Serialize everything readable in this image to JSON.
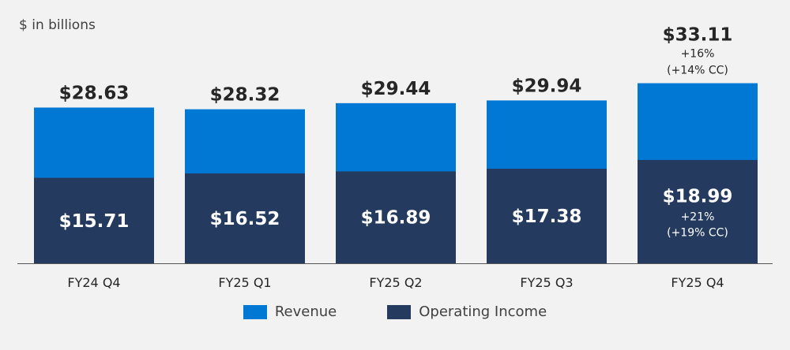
{
  "unit_note": "$ in billions",
  "colors": {
    "revenue": "#0078d4",
    "operating_income": "#243a5e",
    "baseline": "#555555"
  },
  "chart_data": {
    "type": "bar",
    "stacked": "overlay",
    "title": "",
    "xlabel": "",
    "ylabel": "",
    "ylim": [
      0,
      35
    ],
    "grid": false,
    "legend_position": "bottom-center",
    "categories": [
      "FY24 Q4",
      "FY25 Q1",
      "FY25 Q2",
      "FY25 Q3",
      "FY25 Q4"
    ],
    "series": [
      {
        "name": "Revenue",
        "values": [
          28.63,
          28.32,
          29.44,
          29.94,
          33.11
        ],
        "labels": [
          "$28.63",
          "$28.32",
          "$29.44",
          "$29.94",
          "$33.11"
        ]
      },
      {
        "name": "Operating Income",
        "values": [
          15.71,
          16.52,
          16.89,
          17.38,
          18.99
        ],
        "labels": [
          "$15.71",
          "$16.52",
          "$16.89",
          "$17.38",
          "$18.99"
        ]
      }
    ],
    "annotations": [
      {
        "category": "FY25 Q4",
        "series": "Revenue",
        "lines": [
          "+16%",
          "(+14% CC)"
        ]
      },
      {
        "category": "FY25 Q4",
        "series": "Operating Income",
        "lines": [
          "+21%",
          "(+19% CC)"
        ]
      }
    ]
  },
  "legend": [
    {
      "label": "Revenue",
      "color": "#0078d4"
    },
    {
      "label": "Operating Income",
      "color": "#243a5e"
    }
  ]
}
